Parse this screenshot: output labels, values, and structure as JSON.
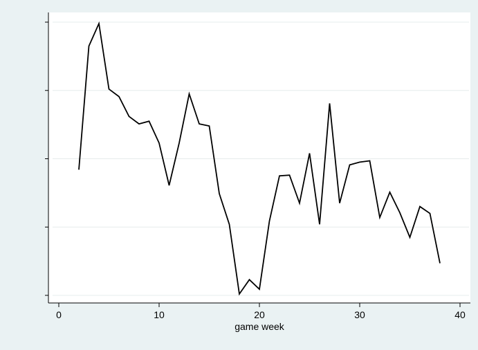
{
  "chart_data": {
    "type": "line",
    "xlabel": "game week",
    "ylabel": "",
    "title": "",
    "xlim": [
      0,
      40
    ],
    "ylim": [
      0,
      4
    ],
    "xticks": [
      0,
      10,
      20,
      30,
      40
    ],
    "yticks": [
      0,
      1,
      2,
      3,
      4
    ],
    "ytick_labels_visible": false,
    "grid": "horizontal",
    "series": [
      {
        "color": "#000000",
        "x": [
          2,
          3,
          4,
          5,
          6,
          7,
          8,
          9,
          10,
          11,
          12,
          13,
          14,
          15,
          16,
          17,
          18,
          19,
          20,
          21,
          22,
          23,
          24,
          25,
          26,
          27,
          28,
          29,
          30,
          31,
          32,
          33,
          34,
          35,
          36,
          37,
          38
        ],
        "y": [
          1.84,
          3.65,
          3.98,
          3.02,
          2.91,
          2.62,
          2.51,
          2.55,
          2.23,
          1.61,
          2.23,
          2.95,
          2.51,
          2.48,
          1.49,
          1.04,
          0.02,
          0.23,
          0.09,
          1.09,
          1.75,
          1.76,
          1.35,
          2.08,
          1.04,
          2.81,
          1.35,
          1.91,
          1.95,
          1.97,
          1.14,
          1.51,
          1.21,
          0.85,
          1.3,
          1.2,
          0.47
        ]
      }
    ],
    "colors": {
      "page_background": "#eaf2f3",
      "plot_background": "#ffffff",
      "gridline": "#e6ecec",
      "line": "#000000"
    }
  }
}
